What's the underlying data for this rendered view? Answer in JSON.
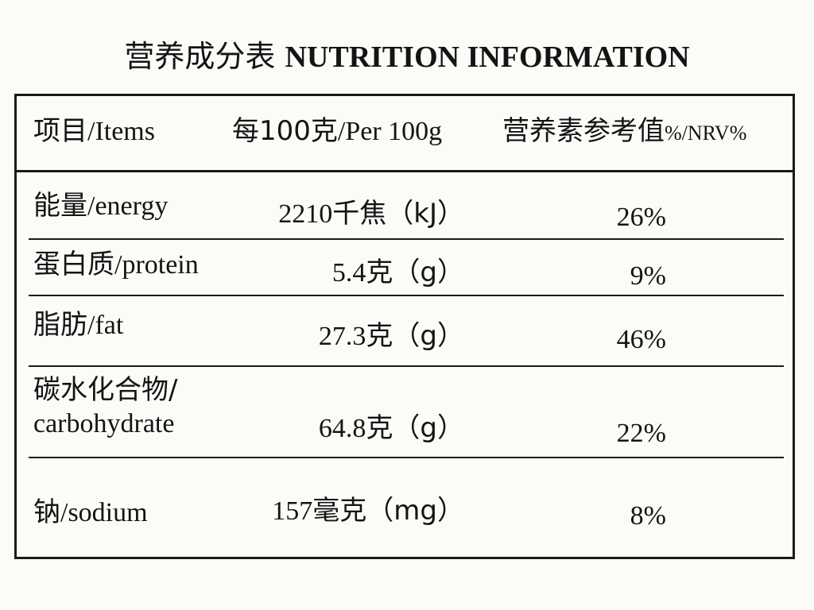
{
  "title": {
    "cn": "营养成分表",
    "en": "NUTRITION INFORMATION"
  },
  "header": {
    "items_cn": "项目",
    "items_en": "/Items",
    "per_cn": "每100克",
    "per_en": "/Per 100g",
    "nrv_cn": "营养素参考值",
    "nrv_en": "%/NRV%"
  },
  "rows": [
    {
      "item_cn": "能量",
      "item_en": "/energy",
      "amount_num": "2210",
      "amount_unit": "千焦（kJ）",
      "nrv": "26%"
    },
    {
      "item_cn": "蛋白质",
      "item_en": "/protein",
      "amount_num": "5.4",
      "amount_unit": "克（g）",
      "nrv": "9%"
    },
    {
      "item_cn": "脂肪",
      "item_en": "/fat",
      "amount_num": "27.3",
      "amount_unit": "克（g）",
      "nrv": "46%"
    },
    {
      "item_cn": "碳水化合物/",
      "item_en": "carbohydrate",
      "amount_num": "64.8",
      "amount_unit": "克（g）",
      "nrv": "22%"
    },
    {
      "item_cn": "钠",
      "item_en": "/sodium",
      "amount_num": "157",
      "amount_unit": "毫克（mg）",
      "nrv": "8%"
    }
  ]
}
